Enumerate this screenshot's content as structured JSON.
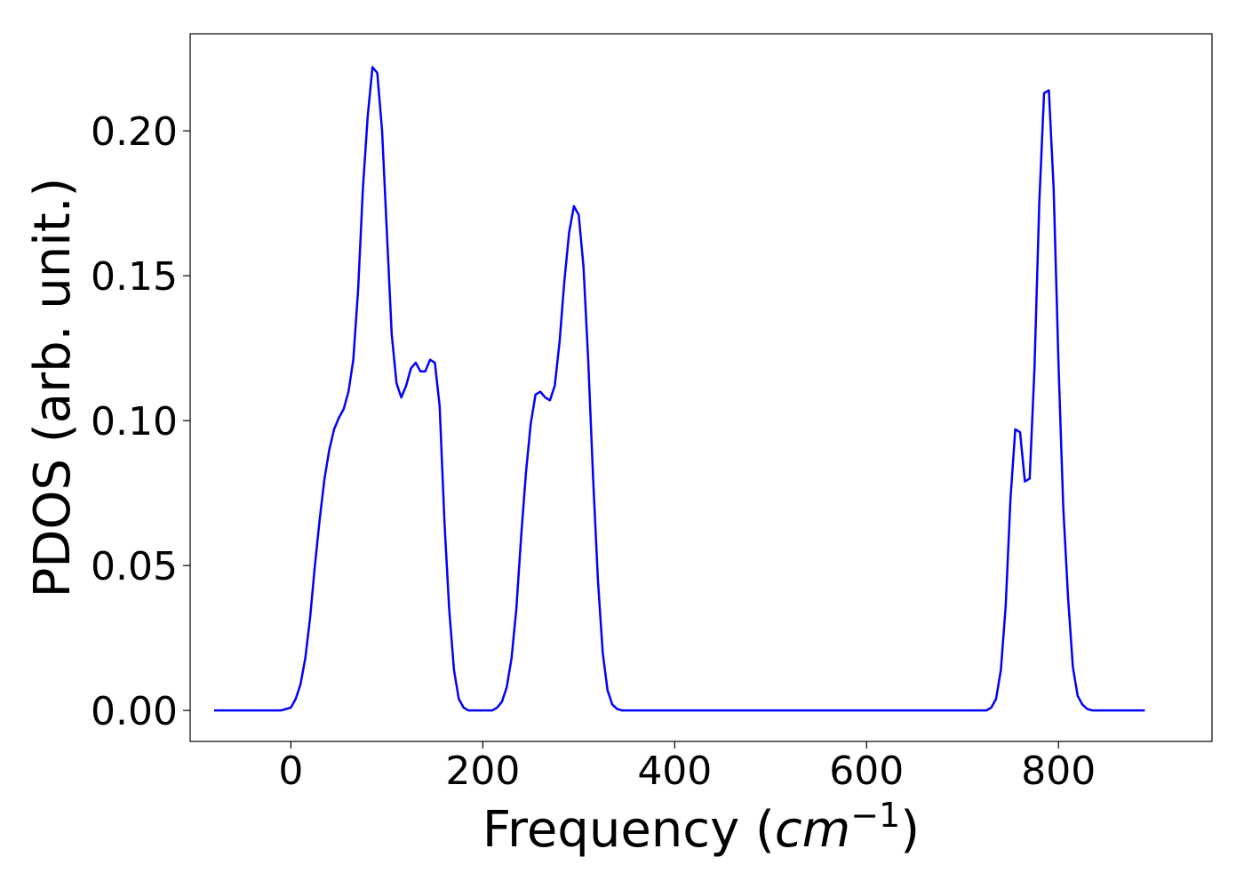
{
  "chart_data": {
    "type": "line",
    "title": "",
    "xlabel": "Frequency",
    "xlabel_unit_base": "cm",
    "xlabel_unit_exponent": "−1",
    "ylabel": "PDOS (arb. unit.)",
    "xlim": [
      -105,
      960
    ],
    "ylim": [
      -0.0107,
      0.2335
    ],
    "xticks": [
      0,
      200,
      400,
      600,
      800
    ],
    "xtick_labels": [
      "0",
      "200",
      "400",
      "600",
      "800"
    ],
    "yticks": [
      0.0,
      0.05,
      0.1,
      0.15,
      0.2
    ],
    "ytick_labels": [
      "0.00",
      "0.05",
      "0.10",
      "0.15",
      "0.20"
    ],
    "grid": false,
    "legend": "none",
    "series": [
      {
        "color": "#0000ff",
        "x": [
          -80,
          -10,
          -5,
          0,
          5,
          10,
          15,
          20,
          25,
          30,
          35,
          40,
          45,
          50,
          55,
          60,
          65,
          70,
          75,
          80,
          85,
          90,
          95,
          100,
          105,
          110,
          115,
          120,
          125,
          130,
          135,
          140,
          145,
          150,
          155,
          160,
          165,
          170,
          175,
          180,
          185,
          210,
          215,
          220,
          225,
          230,
          235,
          240,
          245,
          250,
          255,
          260,
          265,
          270,
          275,
          280,
          285,
          290,
          295,
          300,
          305,
          310,
          315,
          320,
          325,
          330,
          335,
          340,
          345,
          725,
          730,
          735,
          740,
          745,
          750,
          755,
          760,
          765,
          770,
          775,
          780,
          785,
          790,
          795,
          800,
          805,
          810,
          815,
          820,
          825,
          830,
          835,
          890
        ],
        "y": [
          0.0,
          0.0,
          0.0005,
          0.001,
          0.004,
          0.009,
          0.018,
          0.032,
          0.05,
          0.066,
          0.08,
          0.09,
          0.097,
          0.101,
          0.104,
          0.11,
          0.121,
          0.145,
          0.18,
          0.205,
          0.222,
          0.22,
          0.2,
          0.165,
          0.13,
          0.113,
          0.108,
          0.112,
          0.118,
          0.12,
          0.117,
          0.117,
          0.121,
          0.12,
          0.105,
          0.065,
          0.035,
          0.014,
          0.004,
          0.001,
          0.0,
          0.0,
          0.001,
          0.003,
          0.008,
          0.018,
          0.035,
          0.06,
          0.082,
          0.099,
          0.109,
          0.11,
          0.108,
          0.107,
          0.112,
          0.127,
          0.148,
          0.165,
          0.174,
          0.171,
          0.153,
          0.12,
          0.08,
          0.045,
          0.02,
          0.007,
          0.002,
          0.0005,
          0.0,
          0.0,
          0.001,
          0.004,
          0.014,
          0.036,
          0.073,
          0.097,
          0.096,
          0.079,
          0.08,
          0.118,
          0.175,
          0.213,
          0.214,
          0.18,
          0.12,
          0.07,
          0.039,
          0.015,
          0.005,
          0.002,
          0.0005,
          0.0,
          0.0
        ]
      }
    ]
  }
}
